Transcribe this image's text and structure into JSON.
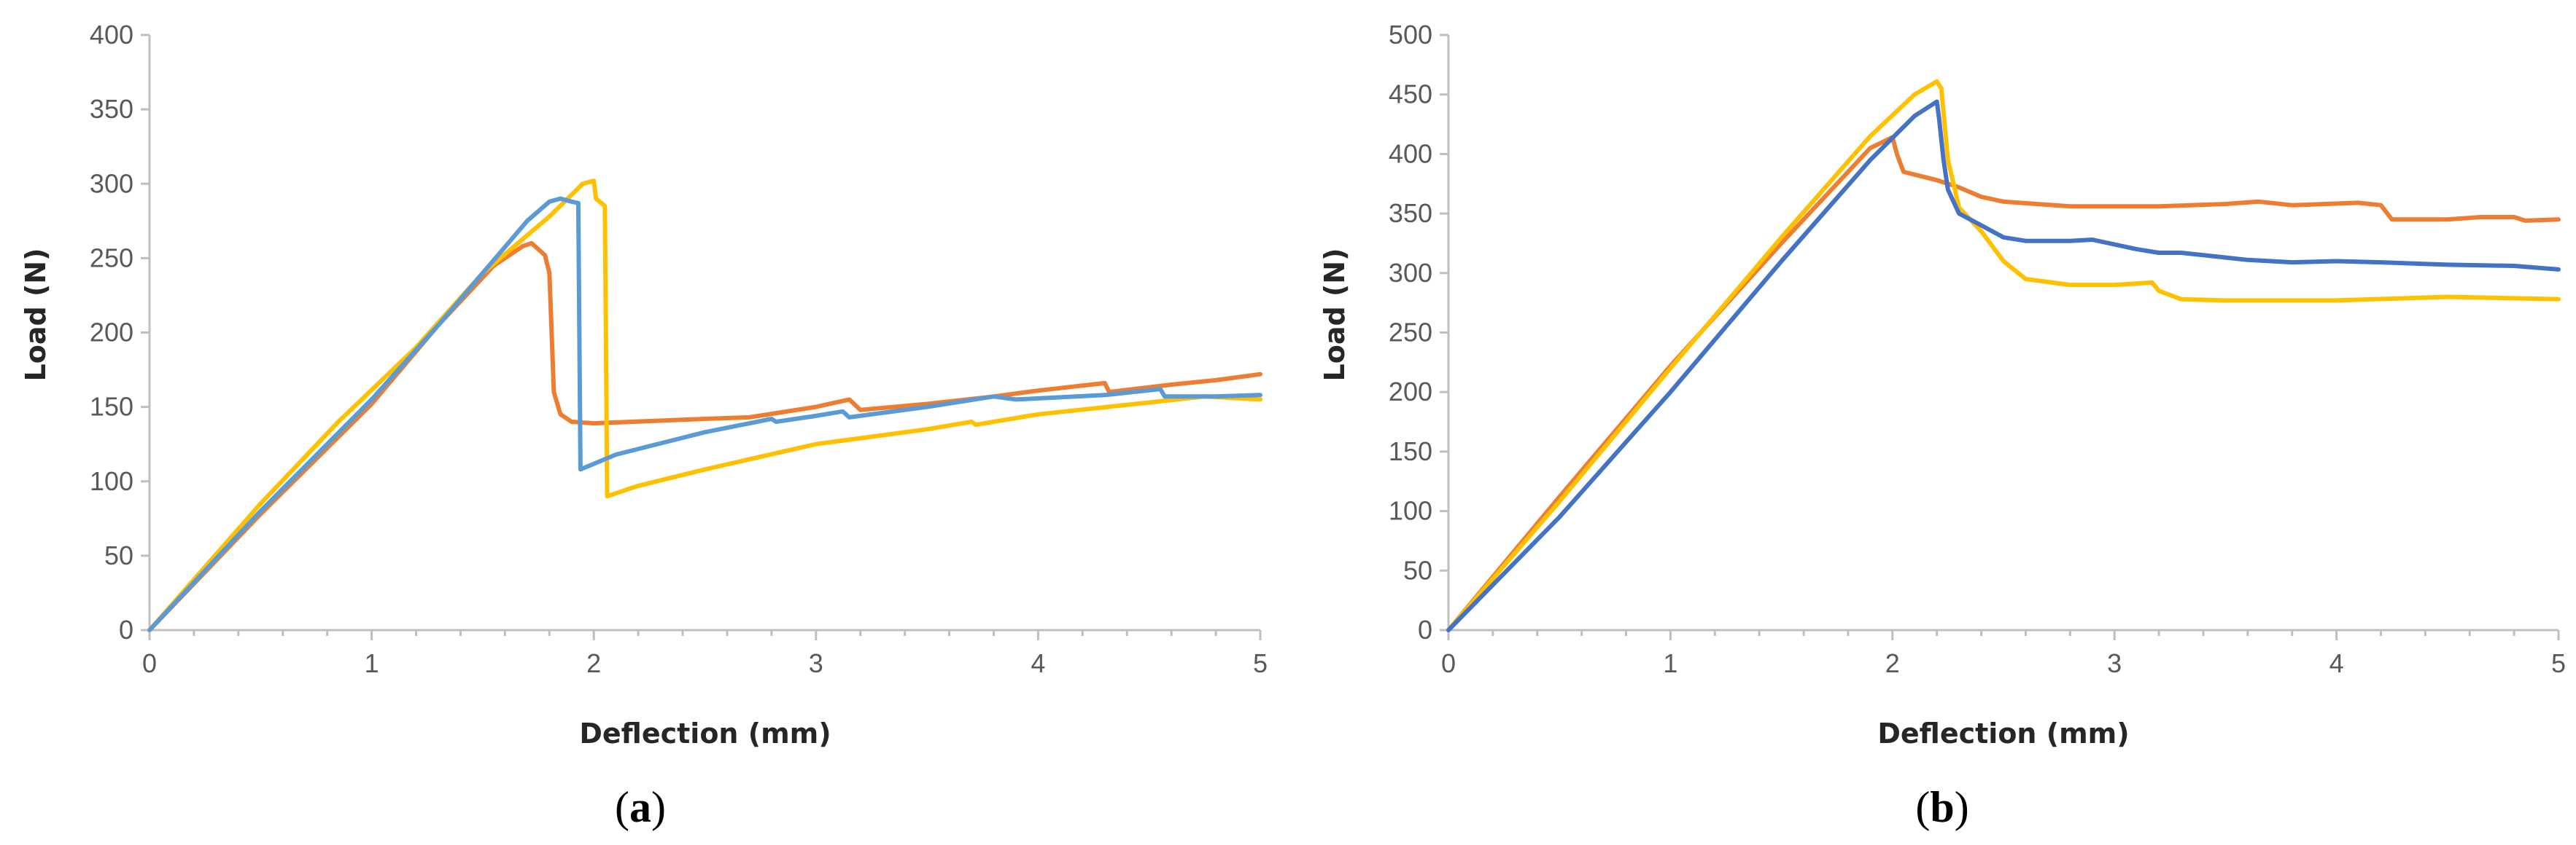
{
  "colors": {
    "orange": "#ED7D31",
    "yellow": "#FFC000",
    "light_blue": "#5B9BD5",
    "dark_blue": "#4472C4"
  },
  "chart_data": [
    {
      "type": "line",
      "panel_label": "a",
      "xlabel": "Deflection (mm)",
      "ylabel": "Load (N)",
      "xlim": [
        0,
        5
      ],
      "ylim": [
        0,
        400
      ],
      "xticks": [
        0,
        1,
        2,
        3,
        4,
        5
      ],
      "yticks": [
        0,
        50,
        100,
        150,
        200,
        250,
        300,
        350,
        400
      ],
      "grid": false,
      "legend": "none",
      "series": [
        {
          "color": "#ED7D31",
          "points": [
            [
              0,
              0
            ],
            [
              0.5,
              78
            ],
            [
              1,
              152
            ],
            [
              1.3,
              205
            ],
            [
              1.55,
              245
            ],
            [
              1.68,
              258
            ],
            [
              1.72,
              260
            ],
            [
              1.78,
              252
            ],
            [
              1.8,
              240
            ],
            [
              1.82,
              160
            ],
            [
              1.85,
              145
            ],
            [
              1.9,
              140
            ],
            [
              2.0,
              139
            ],
            [
              2.5,
              142
            ],
            [
              2.7,
              143
            ],
            [
              3.0,
              150
            ],
            [
              3.15,
              155
            ],
            [
              3.2,
              148
            ],
            [
              3.5,
              152
            ],
            [
              3.8,
              157
            ],
            [
              4.0,
              161
            ],
            [
              4.3,
              166
            ],
            [
              4.32,
              160
            ],
            [
              4.6,
              165
            ],
            [
              4.8,
              168
            ],
            [
              5.0,
              172
            ]
          ]
        },
        {
          "color": "#FFC000",
          "points": [
            [
              0,
              0
            ],
            [
              0.5,
              85
            ],
            [
              0.85,
              140
            ],
            [
              1.2,
              190
            ],
            [
              1.5,
              240
            ],
            [
              1.8,
              278
            ],
            [
              1.95,
              300
            ],
            [
              2.0,
              302
            ],
            [
              2.01,
              290
            ],
            [
              2.05,
              285
            ],
            [
              2.06,
              90
            ],
            [
              2.2,
              97
            ],
            [
              2.5,
              108
            ],
            [
              3.0,
              125
            ],
            [
              3.5,
              135
            ],
            [
              3.7,
              140
            ],
            [
              3.72,
              138
            ],
            [
              4.0,
              145
            ],
            [
              4.5,
              153
            ],
            [
              4.75,
              157
            ],
            [
              5.0,
              155
            ]
          ]
        },
        {
          "color": "#5B9BD5",
          "points": [
            [
              0,
              0
            ],
            [
              0.5,
              80
            ],
            [
              1,
              155
            ],
            [
              1.3,
              205
            ],
            [
              1.5,
              240
            ],
            [
              1.7,
              275
            ],
            [
              1.8,
              288
            ],
            [
              1.85,
              290
            ],
            [
              1.9,
              288
            ],
            [
              1.93,
              287
            ],
            [
              1.94,
              108
            ],
            [
              2.1,
              118
            ],
            [
              2.5,
              133
            ],
            [
              2.8,
              142
            ],
            [
              2.82,
              140
            ],
            [
              3.0,
              144
            ],
            [
              3.12,
              147
            ],
            [
              3.15,
              143
            ],
            [
              3.5,
              150
            ],
            [
              3.8,
              157
            ],
            [
              3.9,
              155
            ],
            [
              4.3,
              158
            ],
            [
              4.55,
              162
            ],
            [
              4.57,
              157
            ],
            [
              4.8,
              157
            ],
            [
              5.0,
              158
            ]
          ]
        }
      ]
    },
    {
      "type": "line",
      "panel_label": "b",
      "xlabel": "Deflection (mm)",
      "ylabel": "Load (N)",
      "xlim": [
        0,
        5
      ],
      "ylim": [
        0,
        500
      ],
      "xticks": [
        0,
        1,
        2,
        3,
        4,
        5
      ],
      "yticks": [
        0,
        50,
        100,
        150,
        200,
        250,
        300,
        350,
        400,
        450,
        500
      ],
      "grid": false,
      "legend": "none",
      "series": [
        {
          "color": "#ED7D31",
          "points": [
            [
              0,
              0
            ],
            [
              0.5,
              112
            ],
            [
              1,
              222
            ],
            [
              1.5,
              325
            ],
            [
              1.9,
              405
            ],
            [
              2.0,
              414
            ],
            [
              2.02,
              400
            ],
            [
              2.05,
              385
            ],
            [
              2.2,
              378
            ],
            [
              2.3,
              372
            ],
            [
              2.4,
              364
            ],
            [
              2.5,
              360
            ],
            [
              2.8,
              356
            ],
            [
              3.0,
              356
            ],
            [
              3.2,
              356
            ],
            [
              3.5,
              358
            ],
            [
              3.65,
              360
            ],
            [
              3.8,
              357
            ],
            [
              4.1,
              359
            ],
            [
              4.2,
              357
            ],
            [
              4.25,
              345
            ],
            [
              4.5,
              345
            ],
            [
              4.65,
              347
            ],
            [
              4.8,
              347
            ],
            [
              4.85,
              344
            ],
            [
              5.0,
              345
            ]
          ]
        },
        {
          "color": "#FFC000",
          "points": [
            [
              0,
              0
            ],
            [
              0.5,
              108
            ],
            [
              1,
              220
            ],
            [
              1.5,
              330
            ],
            [
              1.9,
              415
            ],
            [
              2.1,
              450
            ],
            [
              2.2,
              461
            ],
            [
              2.22,
              455
            ],
            [
              2.25,
              395
            ],
            [
              2.3,
              355
            ],
            [
              2.4,
              335
            ],
            [
              2.5,
              310
            ],
            [
              2.6,
              295
            ],
            [
              2.8,
              290
            ],
            [
              3.0,
              290
            ],
            [
              3.17,
              292
            ],
            [
              3.2,
              285
            ],
            [
              3.3,
              278
            ],
            [
              3.5,
              277
            ],
            [
              4.0,
              277
            ],
            [
              4.5,
              280
            ],
            [
              5.0,
              278
            ]
          ]
        },
        {
          "color": "#4472C4",
          "points": [
            [
              0,
              0
            ],
            [
              0.5,
              95
            ],
            [
              1,
              200
            ],
            [
              1.5,
              310
            ],
            [
              1.9,
              395
            ],
            [
              2.1,
              432
            ],
            [
              2.2,
              444
            ],
            [
              2.21,
              430
            ],
            [
              2.23,
              395
            ],
            [
              2.25,
              370
            ],
            [
              2.3,
              350
            ],
            [
              2.4,
              340
            ],
            [
              2.5,
              330
            ],
            [
              2.6,
              327
            ],
            [
              2.8,
              327
            ],
            [
              2.9,
              328
            ],
            [
              3.1,
              320
            ],
            [
              3.2,
              317
            ],
            [
              3.3,
              317
            ],
            [
              3.6,
              311
            ],
            [
              3.8,
              309
            ],
            [
              4.0,
              310
            ],
            [
              4.2,
              309
            ],
            [
              4.5,
              307
            ],
            [
              4.8,
              306
            ],
            [
              5.0,
              303
            ]
          ]
        }
      ]
    }
  ]
}
